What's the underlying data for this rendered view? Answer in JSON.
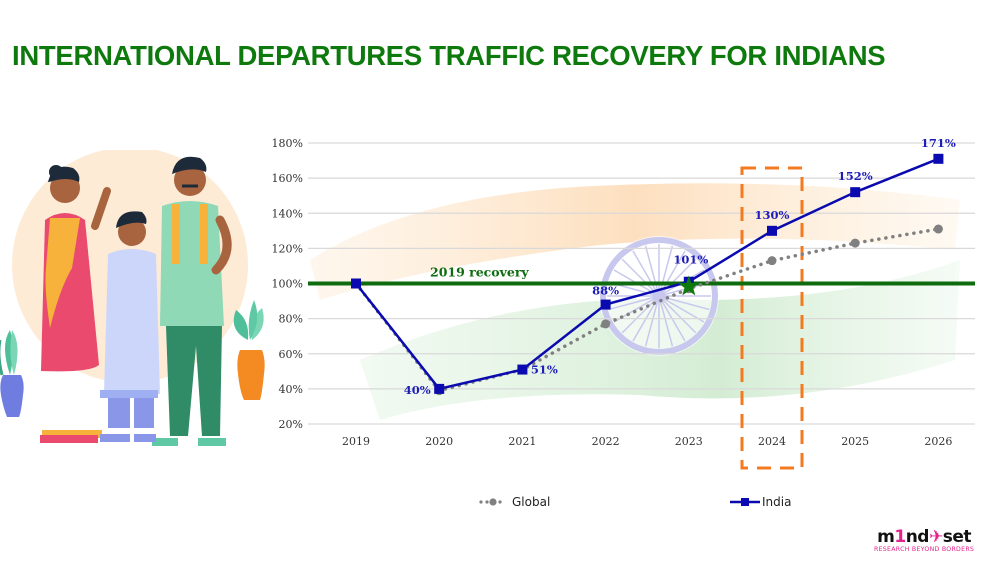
{
  "title": "INTERNATIONAL DEPARTURES TRAFFIC RECOVERY FOR INDIANS",
  "colors": {
    "title": "#0e7a0d",
    "india": "#0a0ab0",
    "global": "#808080",
    "recovery_line": "#0e6b0e",
    "highlight_box": "#f47a20",
    "logo_pink": "#e4218c"
  },
  "chart_data": {
    "type": "line",
    "title": "International Departures Traffic Recovery for Indians",
    "xlabel": "",
    "ylabel": "",
    "x": [
      "2019",
      "2020",
      "2021",
      "2022",
      "2023",
      "2024",
      "2025",
      "2026"
    ],
    "y_ticks": [
      "20%",
      "40%",
      "60%",
      "80%",
      "100%",
      "120%",
      "140%",
      "160%",
      "180%"
    ],
    "ylim": [
      20,
      180
    ],
    "grid": true,
    "legend_position": "bottom",
    "series": [
      {
        "name": "Global",
        "style": "dotted",
        "marker": "circle",
        "values": [
          100,
          39,
          51,
          77,
          97,
          113,
          123,
          131
        ]
      },
      {
        "name": "India",
        "style": "solid",
        "marker": "square",
        "values": [
          100,
          40,
          51,
          88,
          101,
          130,
          152,
          171
        ],
        "data_labels": [
          "",
          "40%",
          "51%",
          "88%",
          "101%",
          "130%",
          "152%",
          "171%"
        ]
      }
    ],
    "reference_line": {
      "value": 100,
      "label": "2019 recovery"
    },
    "highlight": {
      "category": "2024",
      "style": "dashed-box"
    },
    "annotation": {
      "category": "2023",
      "marker": "star"
    }
  },
  "legend": {
    "global": "Global",
    "india": "India"
  },
  "logo": {
    "brand_part1": "m",
    "brand_one": "1",
    "brand_part2": "nd",
    "brand_part3": "set",
    "tagline": "RESEARCH BEYOND BORDERS"
  }
}
